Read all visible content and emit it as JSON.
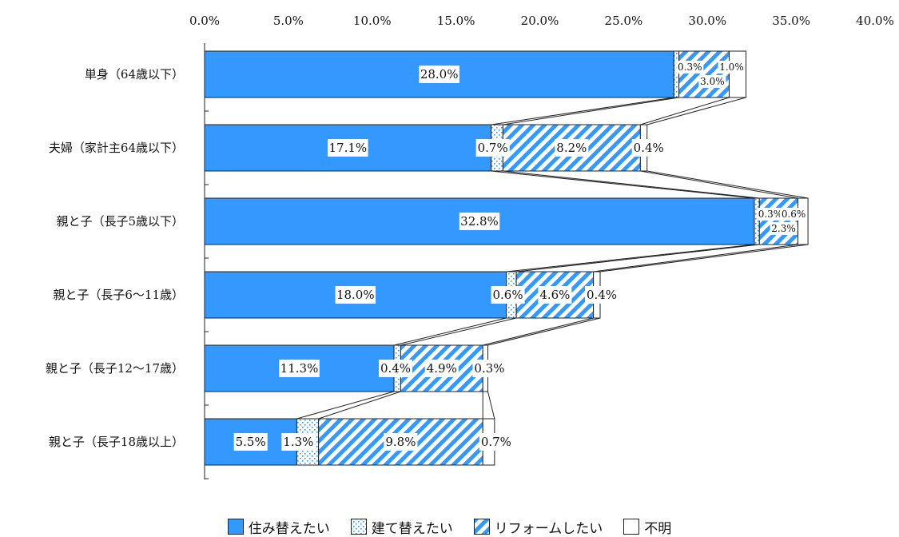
{
  "chart_data": {
    "type": "bar",
    "orientation": "horizontal",
    "stacked": true,
    "categories": [
      "単身（64歳以下）",
      "夫婦（家計主64歳以下）",
      "親と子（長子5歳以下）",
      "親と子（長子6～11歳）",
      "親と子（長子12～17歳）",
      "親と子（長子18歳以上）"
    ],
    "series": [
      {
        "name": "住み替えたい",
        "values": [
          28.0,
          17.1,
          32.8,
          18.0,
          11.3,
          5.5
        ],
        "labels": [
          "28.0%",
          "17.1%",
          "32.8%",
          "18.0%",
          "11.3%",
          "5.5%"
        ],
        "color": "#3399ff",
        "pattern": "solid"
      },
      {
        "name": "建て替えたい",
        "values": [
          0.3,
          0.7,
          0.3,
          0.6,
          0.4,
          1.3
        ],
        "labels": [
          "0.3%",
          "0.7%",
          "0.3%",
          "0.6%",
          "0.4%",
          "1.3%"
        ],
        "color": "#3399ff",
        "pattern": "dots"
      },
      {
        "name": "リフォームしたい",
        "values": [
          3.0,
          8.2,
          2.3,
          4.6,
          4.9,
          9.8
        ],
        "labels": [
          "3.0%",
          "8.2%",
          "2.3%",
          "4.6%",
          "4.9%",
          "9.8%"
        ],
        "color": "#3399ff",
        "pattern": "diagonal"
      },
      {
        "name": "不明",
        "values": [
          1.0,
          0.4,
          0.6,
          0.4,
          0.3,
          0.7
        ],
        "labels": [
          "1.0%",
          "0.4%",
          "0.6%",
          "0.4%",
          "0.3%",
          "0.7%"
        ],
        "color": "#ffffff",
        "pattern": "none"
      }
    ],
    "x_ticks": [
      "0.0%",
      "5.0%",
      "10.0%",
      "15.0%",
      "20.0%",
      "25.0%",
      "30.0%",
      "35.0%",
      "40.0%"
    ],
    "xlim": [
      0,
      40
    ],
    "x_axis_position": "top",
    "series_lines": true,
    "grid": false,
    "legend_position": "bottom",
    "title": "",
    "xlabel": "",
    "ylabel": ""
  }
}
